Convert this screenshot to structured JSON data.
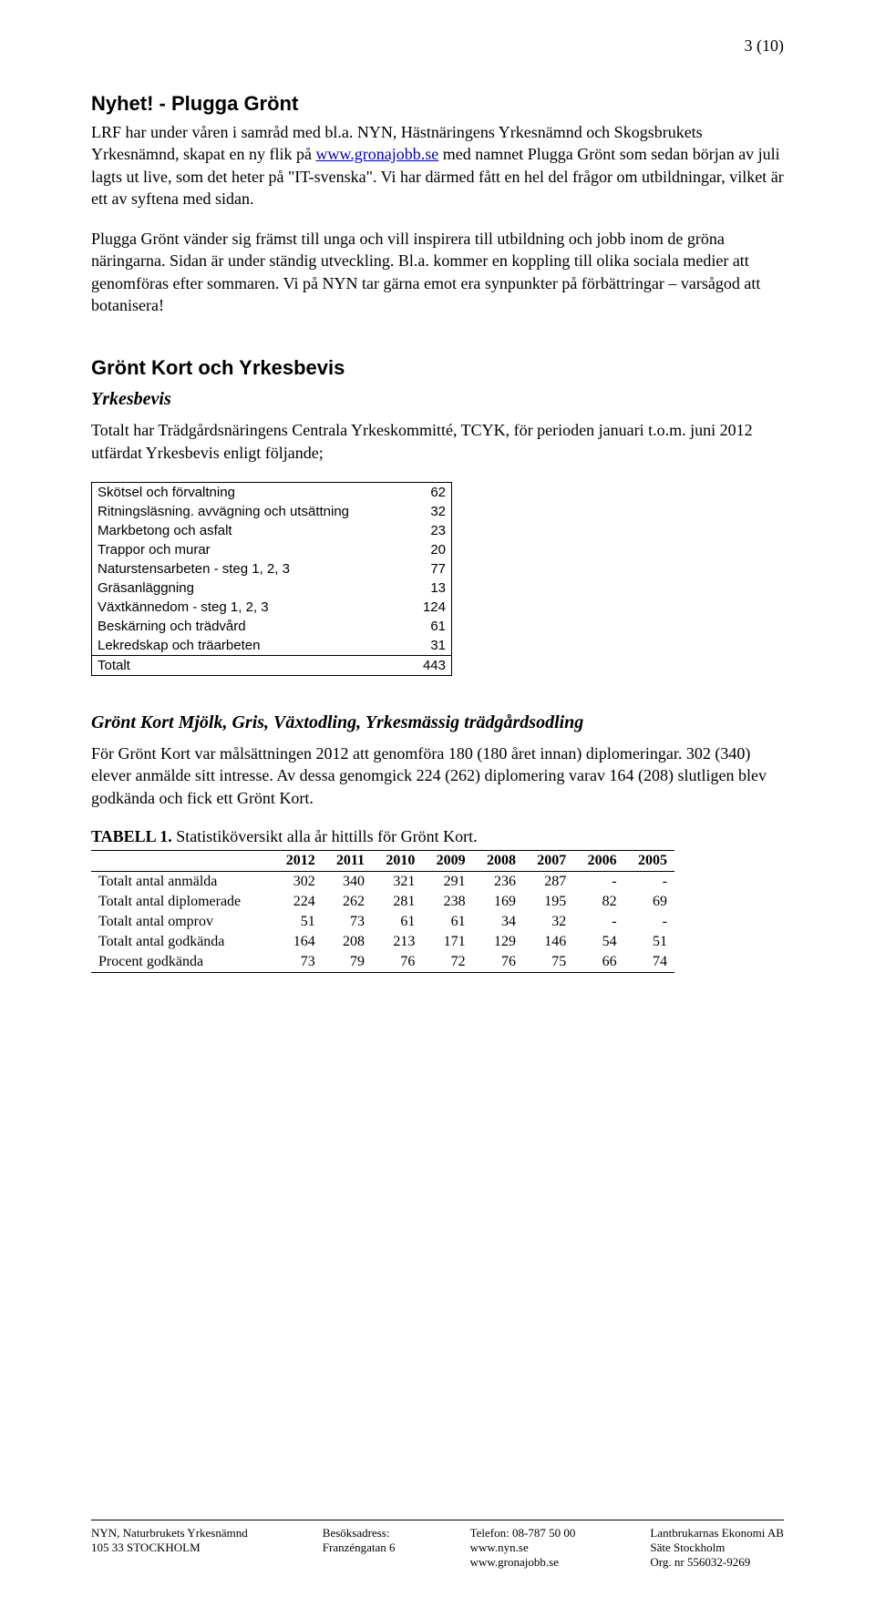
{
  "page_num": "3 (10)",
  "section1": {
    "title": "Nyhet! - Plugga Grönt",
    "para1_a": "LRF har under våren i samråd med bl.a. NYN, Hästnäringens Yrkesnämnd och Skogsbrukets Yrkesnämnd, skapat en ny flik på ",
    "link1": "www.gronajobb.se",
    "para1_b": " med namnet Plugga Grönt som sedan början av juli lagts ut live, som det heter på \"IT-svenska\". Vi har därmed fått en hel del frågor om utbildningar, vilket är ett av syftena med sidan.",
    "para2": "Plugga Grönt vänder sig främst till unga och vill inspirera till utbildning och jobb inom de gröna näringarna. Sidan är under ständig utveckling. Bl.a. kommer en koppling till olika sociala medier att genomföras efter sommaren. Vi på NYN tar gärna emot era synpunkter på förbättringar – varsågod att botanisera!"
  },
  "section2": {
    "title": "Grönt Kort och Yrkesbevis",
    "sub1": "Yrkesbevis",
    "intro": "Totalt har Trädgårdsnäringens Centrala Yrkeskommitté, TCYK, för perioden januari t.o.m. juni 2012 utfärdat Yrkesbevis enligt följande;",
    "t1": {
      "col_width_name": 320,
      "col_width_val": 50,
      "rows": [
        {
          "name": "Skötsel och förvaltning",
          "val": "62"
        },
        {
          "name": "Ritningsläsning. avvägning och utsättning",
          "val": "32"
        },
        {
          "name": "Markbetong och asfalt",
          "val": "23"
        },
        {
          "name": "Trappor och murar",
          "val": "20"
        },
        {
          "name": "Naturstensarbeten - steg 1, 2, 3",
          "val": "77"
        },
        {
          "name": "Gräsanläggning",
          "val": "13"
        },
        {
          "name": "Växtkännedom - steg 1, 2, 3",
          "val": "124"
        },
        {
          "name": "Beskärning och trädvård",
          "val": "61"
        },
        {
          "name": "Lekredskap och träarbeten",
          "val": "31"
        }
      ],
      "total_label": "Totalt",
      "total_val": "443"
    },
    "sub2": "Grönt Kort Mjölk, Gris, Växtodling, Yrkesmässig trädgårdsodling",
    "para3": "För Grönt Kort var målsättningen 2012 att genomföra 180 (180 året innan) diplomeringar. 302 (340) elever anmälde sitt intresse. Av dessa genomgick 224 (262) diplomering varav 164 (208) slutligen blev godkända och fick ett Grönt Kort.",
    "t2": {
      "caption_bold": "TABELL 1.",
      "caption_rest": " Statistiköversikt alla år hittills för Grönt Kort.",
      "years": [
        "2012",
        "2011",
        "2010",
        "2009",
        "2008",
        "2007",
        "2006",
        "2005"
      ],
      "rows": [
        {
          "label": "Totalt antal anmälda",
          "vals": [
            "302",
            "340",
            "321",
            "291",
            "236",
            "287",
            "-",
            "-"
          ]
        },
        {
          "label": "Totalt antal diplomerade",
          "vals": [
            "224",
            "262",
            "281",
            "238",
            "169",
            "195",
            "82",
            "69"
          ]
        },
        {
          "label": "Totalt antal omprov",
          "vals": [
            "51",
            "73",
            "61",
            "61",
            "34",
            "32",
            "-",
            "-"
          ]
        },
        {
          "label": "Totalt antal godkända",
          "vals": [
            "164",
            "208",
            "213",
            "171",
            "129",
            "146",
            "54",
            "51"
          ]
        },
        {
          "label": "Procent godkända",
          "vals": [
            "73",
            "79",
            "76",
            "72",
            "76",
            "75",
            "66",
            "74"
          ]
        }
      ]
    }
  },
  "footer": {
    "c1": [
      "NYN, Naturbrukets Yrkesnämnd",
      "",
      "105 33  STOCKHOLM"
    ],
    "c2": [
      "Besöksadress:",
      "Franzéngatan 6"
    ],
    "c3": [
      "Telefon:  08-787 50 00",
      "www.nyn.se",
      "www.gronajobb.se"
    ],
    "c4": [
      "Lantbrukarnas Ekonomi AB",
      "Säte Stockholm",
      "Org. nr 556032-9269"
    ]
  }
}
